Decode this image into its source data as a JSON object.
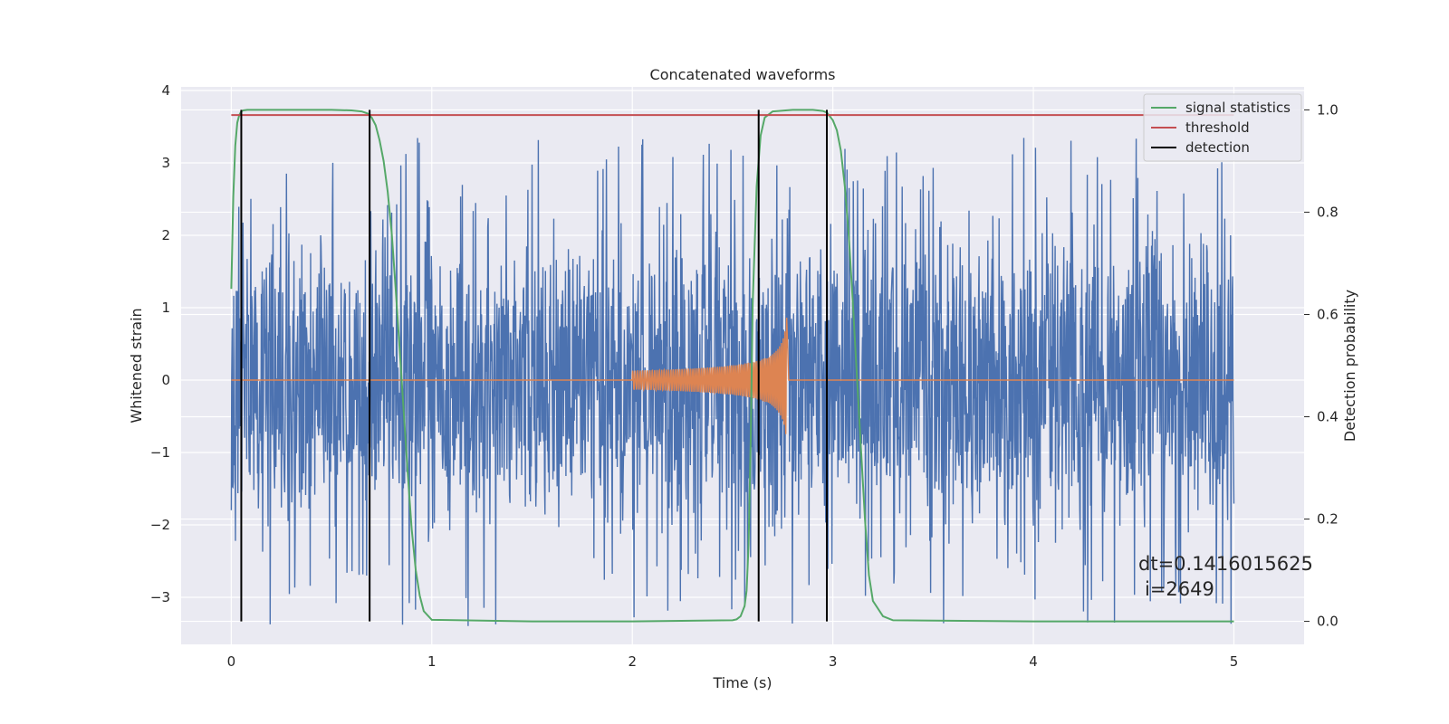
{
  "chart_data": {
    "type": "line",
    "title": "Concatenated waveforms",
    "xlabel": "Time (s)",
    "ylabel": "Whitened strain",
    "ylabel_right": "Detection probability",
    "xlim": [
      -0.25,
      5.35
    ],
    "ylim": [
      -3.65,
      4.05
    ],
    "ylim_right": [
      -0.045,
      1.045
    ],
    "x_ticks": [
      0,
      1,
      2,
      3,
      4,
      5
    ],
    "x_tick_labels": [
      "0",
      "1",
      "2",
      "3",
      "4",
      "5"
    ],
    "y_ticks": [
      -3,
      -2,
      -1,
      0,
      1,
      2,
      3,
      4
    ],
    "y_tick_labels": [
      "−3",
      "−2",
      "−1",
      "0",
      "1",
      "2",
      "3",
      "4"
    ],
    "y_right_ticks": [
      0.0,
      0.2,
      0.4,
      0.6,
      0.8,
      1.0
    ],
    "y_right_tick_labels": [
      "0.0",
      "0.2",
      "0.4",
      "0.6",
      "0.8",
      "1.0"
    ],
    "grid": true,
    "legend_position": "top-right",
    "colors": {
      "strain": "#4c72b0",
      "waveform": "#dd8452",
      "signal_statistics": "#55a868",
      "threshold": "#c44e52",
      "detection": "#000000",
      "axes_bg": "#eaeaf2",
      "grid": "#ffffff"
    },
    "series": [
      {
        "name": "signal statistics",
        "axis": "right",
        "x": [
          0.0,
          0.01,
          0.02,
          0.03,
          0.04,
          0.05,
          0.06,
          0.08,
          0.1,
          0.15,
          0.3,
          0.5,
          0.6,
          0.65,
          0.68,
          0.7,
          0.72,
          0.74,
          0.76,
          0.78,
          0.8,
          0.82,
          0.84,
          0.86,
          0.88,
          0.9,
          0.92,
          0.94,
          0.96,
          1.0,
          1.5,
          2.0,
          2.5,
          2.52,
          2.54,
          2.56,
          2.57,
          2.58,
          2.59,
          2.6,
          2.62,
          2.64,
          2.66,
          2.7,
          2.8,
          2.9,
          2.95,
          2.97,
          3.0,
          3.02,
          3.04,
          3.06,
          3.08,
          3.1,
          3.12,
          3.14,
          3.16,
          3.18,
          3.2,
          3.25,
          3.3,
          4.0,
          5.0
        ],
        "values": [
          0.65,
          0.83,
          0.93,
          0.975,
          0.99,
          0.997,
          0.999,
          1.0,
          1.0,
          1.0,
          1.0,
          1.0,
          0.999,
          0.997,
          0.993,
          0.985,
          0.97,
          0.94,
          0.9,
          0.84,
          0.76,
          0.65,
          0.53,
          0.41,
          0.29,
          0.18,
          0.1,
          0.05,
          0.02,
          0.003,
          0.0,
          0.0,
          0.002,
          0.004,
          0.01,
          0.03,
          0.06,
          0.15,
          0.35,
          0.62,
          0.85,
          0.95,
          0.985,
          0.997,
          1.0,
          1.0,
          0.998,
          0.995,
          0.98,
          0.96,
          0.92,
          0.85,
          0.75,
          0.62,
          0.48,
          0.34,
          0.2,
          0.09,
          0.04,
          0.01,
          0.002,
          0.0,
          0.0
        ]
      },
      {
        "name": "threshold",
        "axis": "right",
        "x": [
          0,
          5
        ],
        "values": [
          0.99,
          0.99
        ]
      },
      {
        "name": "detection",
        "axis": "right",
        "x": [
          0.05,
          0.69,
          2.63,
          2.97
        ],
        "y_range": [
          0.0,
          1.0
        ]
      }
    ],
    "annotation_dt": "dt=0.1416015625",
    "annotation_i": "i=2649"
  }
}
